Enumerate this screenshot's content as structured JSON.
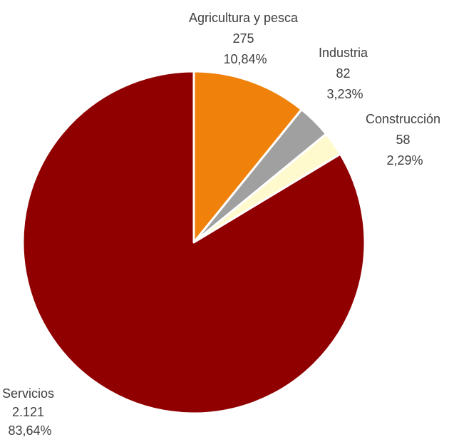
{
  "chart_data": {
    "type": "pie",
    "start_angle_deg": 0,
    "direction": "clockwise",
    "slices": [
      {
        "label": "Agricultura y pesca",
        "value_text": "275",
        "percent_text": "10,84%",
        "value": 275,
        "percent": 10.84,
        "color": "#F0820C"
      },
      {
        "label": "Industria",
        "value_text": "82",
        "percent_text": "3,23%",
        "value": 82,
        "percent": 3.23,
        "color": "#A0A0A0"
      },
      {
        "label": "Construcción",
        "value_text": "58",
        "percent_text": "2,29%",
        "value": 58,
        "percent": 2.29,
        "color": "#FFFACD"
      },
      {
        "label": "Servicios",
        "value_text": "2.121",
        "percent_text": "83,64%",
        "value": 2121,
        "percent": 83.64,
        "color": "#900000"
      }
    ],
    "legend": "none",
    "labels": "outside"
  }
}
